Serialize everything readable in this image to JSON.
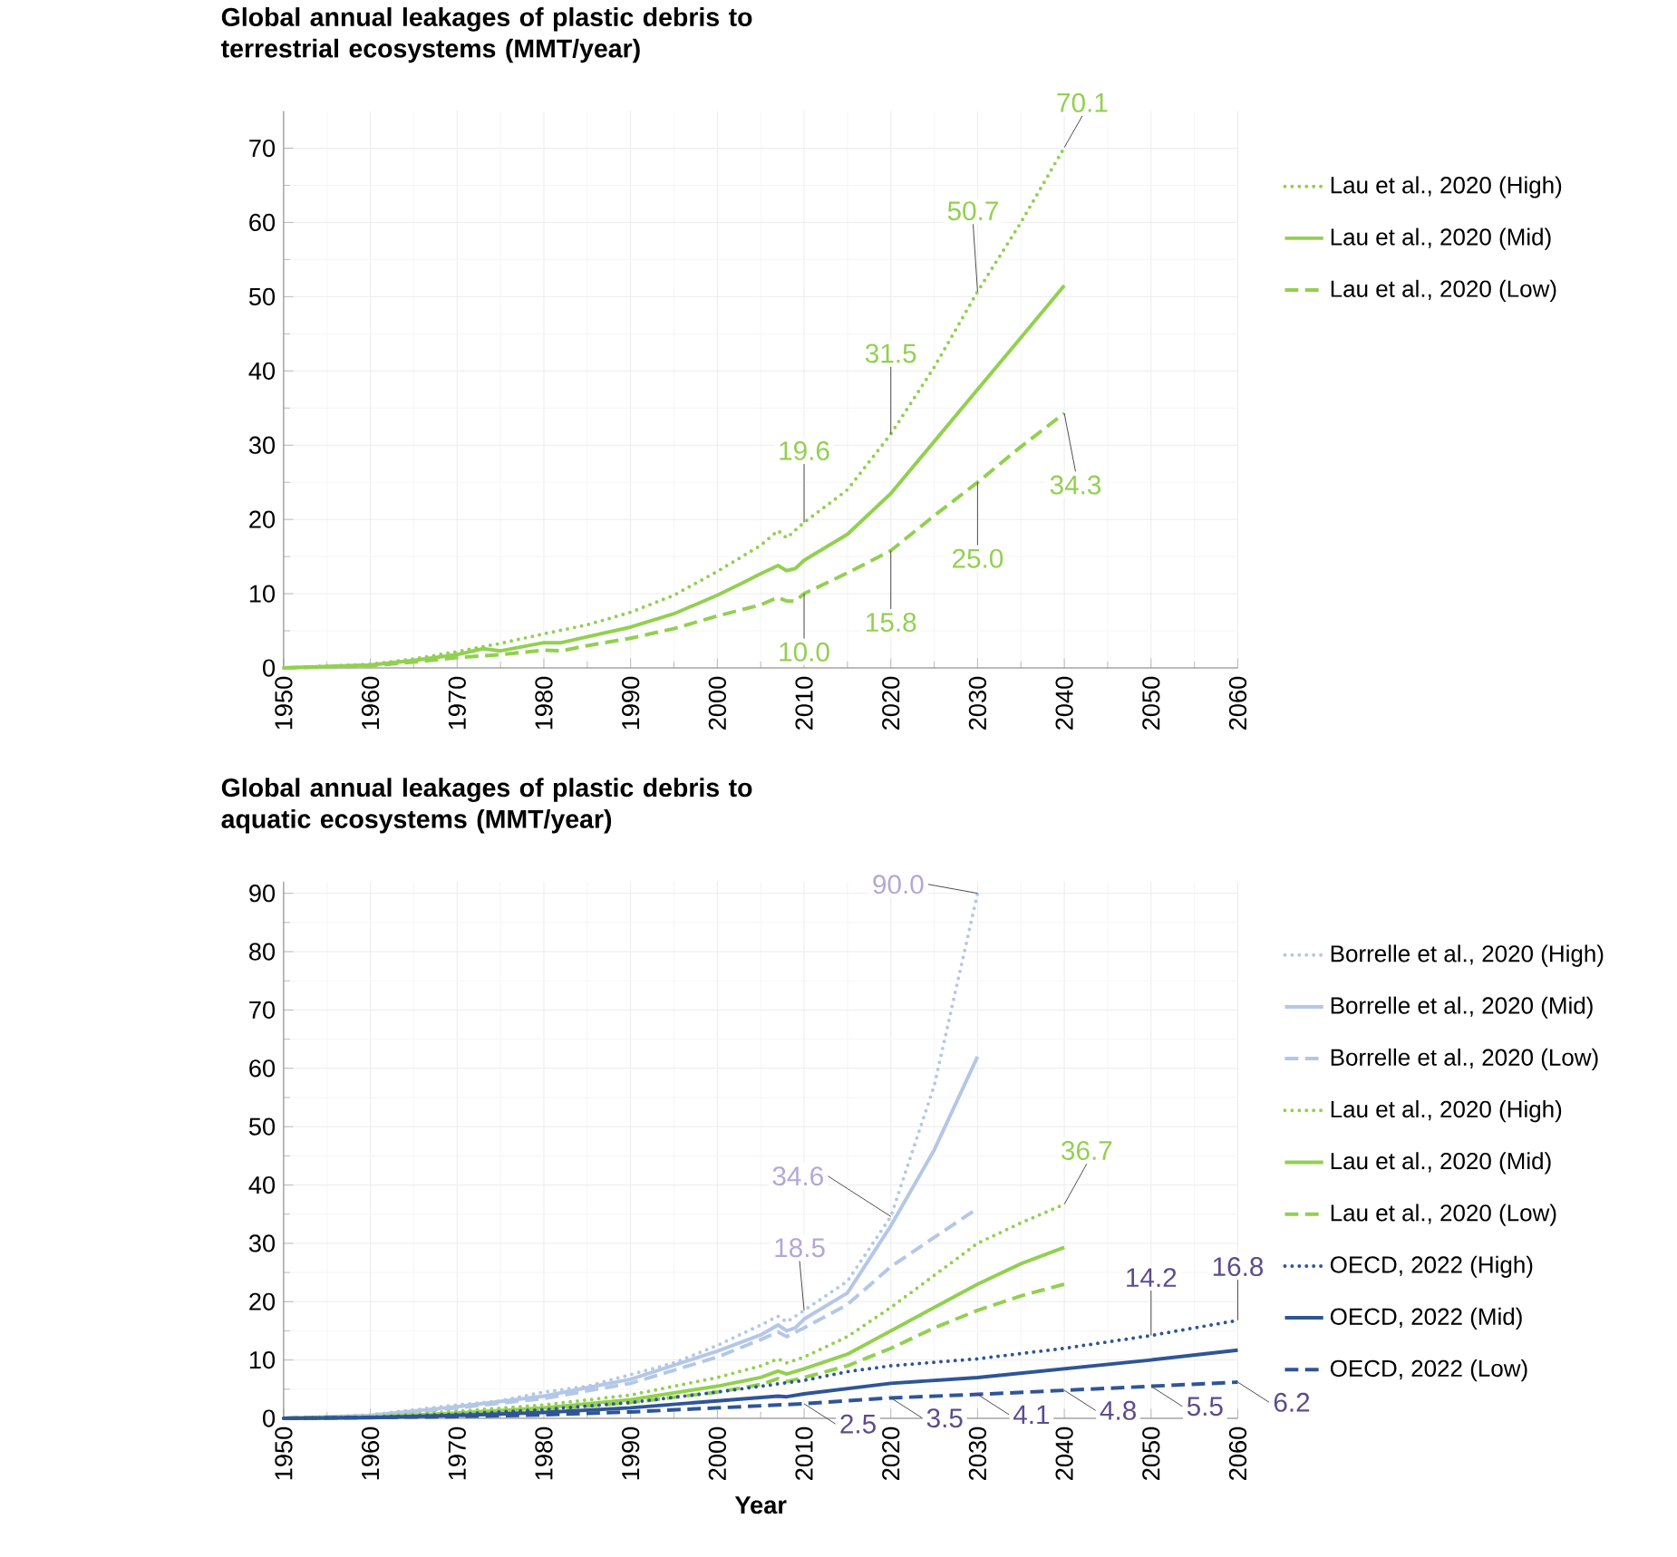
{
  "chart_data": [
    {
      "type": "line",
      "title": "Global annual leakages of plastic debris to terrestrial ecosystems (MMT/year)",
      "xlim": [
        1950,
        2060
      ],
      "xticks": [
        1950,
        1960,
        1970,
        1980,
        1990,
        2000,
        2010,
        2020,
        2030,
        2040,
        2050,
        2060
      ],
      "ylim": [
        0,
        75
      ],
      "yticks": [
        0,
        10,
        20,
        30,
        40,
        50,
        60,
        70
      ],
      "grid": true,
      "legend": "right",
      "series": [
        {
          "name": "Lau et al., 2020 (High)",
          "color": "#92d050",
          "line_style": "dotted",
          "x": [
            1950,
            1960,
            1965,
            1970,
            1975,
            1980,
            1985,
            1990,
            1995,
            2000,
            2005,
            2007,
            2008,
            2010,
            2015,
            2020,
            2025,
            2030,
            2035,
            2040
          ],
          "values": [
            0,
            0.5,
            1.2,
            2.2,
            3.3,
            4.6,
            5.8,
            7.5,
            9.8,
            13,
            16.5,
            18.5,
            17.5,
            19.6,
            24,
            31.5,
            40.5,
            50.7,
            60,
            70.1
          ]
        },
        {
          "name": "Lau et al., 2020 (Mid)",
          "color": "#92d050",
          "line_style": "solid",
          "x": [
            1950,
            1960,
            1965,
            1970,
            1973,
            1975,
            1980,
            1982,
            1985,
            1990,
            1995,
            2000,
            2003,
            2005,
            2007,
            2008,
            2009,
            2010,
            2015,
            2020,
            2025,
            2030,
            2035,
            2040
          ],
          "values": [
            0,
            0.4,
            1,
            1.8,
            2.6,
            2.3,
            3.4,
            3.4,
            4.2,
            5.5,
            7.3,
            9.8,
            11.5,
            12.7,
            13.8,
            13.1,
            13.4,
            14.5,
            18,
            23.5,
            30.5,
            37.5,
            44.5,
            51.5
          ]
        },
        {
          "name": "Lau et al., 2020 (Low)",
          "color": "#92d050",
          "line_style": "dashed",
          "x": [
            1950,
            1960,
            1965,
            1970,
            1975,
            1980,
            1982,
            1985,
            1990,
            1995,
            2000,
            2005,
            2007,
            2008,
            2009,
            2010,
            2015,
            2020,
            2025,
            2030,
            2035,
            2040
          ],
          "values": [
            0,
            0.3,
            0.8,
            1.4,
            1.8,
            2.4,
            2.3,
            3,
            4,
            5.3,
            7,
            8.5,
            9.5,
            9,
            9,
            10.0,
            12.8,
            15.8,
            20.5,
            25.0,
            29.8,
            34.3
          ]
        }
      ],
      "annotations": [
        {
          "text": "19.6",
          "x": 2010,
          "y": 19.6
        },
        {
          "text": "31.5",
          "x": 2020,
          "y": 31.5
        },
        {
          "text": "50.7",
          "x": 2030,
          "y": 50.7
        },
        {
          "text": "70.1",
          "x": 2040,
          "y": 70.1
        },
        {
          "text": "10.0",
          "x": 2010,
          "y": 10.0
        },
        {
          "text": "15.8",
          "x": 2020,
          "y": 15.8
        },
        {
          "text": "25.0",
          "x": 2030,
          "y": 25.0
        },
        {
          "text": "34.3",
          "x": 2040,
          "y": 34.3
        }
      ]
    },
    {
      "type": "line",
      "title": "Global annual leakages of plastic debris to aquatic ecosystems (MMT/year)",
      "xlabel": "Year",
      "xlim": [
        1950,
        2060
      ],
      "xticks": [
        1950,
        1960,
        1970,
        1980,
        1990,
        2000,
        2010,
        2020,
        2030,
        2040,
        2050,
        2060
      ],
      "ylim": [
        0,
        92
      ],
      "yticks": [
        0,
        10,
        20,
        30,
        40,
        50,
        60,
        70,
        80,
        90
      ],
      "grid": true,
      "legend": "right",
      "series": [
        {
          "name": "Borrelle et al., 2020 (High)",
          "color": "#b4c7e7",
          "line_style": "dotted",
          "x": [
            1950,
            1960,
            1970,
            1975,
            1980,
            1985,
            1990,
            1995,
            2000,
            2005,
            2007,
            2008,
            2010,
            2015,
            2020,
            2025,
            2030
          ],
          "values": [
            0,
            0.6,
            2.3,
            3,
            4.5,
            5.5,
            7.5,
            9.5,
            12.5,
            16,
            17.5,
            16.5,
            18.5,
            23.5,
            34.6,
            57,
            90.0
          ]
        },
        {
          "name": "Borrelle et al., 2020 (Mid)",
          "color": "#b4c7e7",
          "line_style": "solid",
          "x": [
            1950,
            1960,
            1970,
            1980,
            1990,
            2000,
            2005,
            2007,
            2008,
            2009,
            2010,
            2015,
            2020,
            2025,
            2030
          ],
          "values": [
            0,
            0.5,
            2,
            3.8,
            6.7,
            11.5,
            14.3,
            16,
            15,
            15.5,
            17,
            21.5,
            33,
            46,
            62
          ]
        },
        {
          "name": "Borrelle et al., 2020 (Low)",
          "color": "#b4c7e7",
          "line_style": "dashed",
          "x": [
            1950,
            1960,
            1970,
            1980,
            1990,
            2000,
            2005,
            2007,
            2008,
            2010,
            2015,
            2020,
            2025,
            2030
          ],
          "values": [
            0,
            0.4,
            1.8,
            3.4,
            6,
            10.5,
            13.5,
            14.8,
            14,
            15.5,
            19.5,
            26,
            31,
            36
          ]
        },
        {
          "name": "Lau et al., 2020 (High)",
          "color": "#92d050",
          "line_style": "dotted",
          "x": [
            1950,
            1960,
            1970,
            1980,
            1990,
            2000,
            2005,
            2007,
            2008,
            2010,
            2015,
            2020,
            2025,
            2030,
            2035,
            2040
          ],
          "values": [
            0,
            0.3,
            1.2,
            2.3,
            4,
            7,
            9,
            10.2,
            9.5,
            10.5,
            14,
            19,
            24.5,
            30,
            33.5,
            36.7
          ]
        },
        {
          "name": "Lau et al., 2020 (Mid)",
          "color": "#92d050",
          "line_style": "solid",
          "x": [
            1950,
            1960,
            1970,
            1980,
            1990,
            2000,
            2005,
            2007,
            2008,
            2010,
            2015,
            2020,
            2025,
            2030,
            2035,
            2040
          ],
          "values": [
            0,
            0.2,
            0.9,
            1.8,
            3.2,
            5.5,
            7,
            8.1,
            7.6,
            8.5,
            11,
            15,
            19,
            23,
            26.5,
            29.3
          ]
        },
        {
          "name": "Lau et al., 2020 (Low)",
          "color": "#92d050",
          "line_style": "dashed",
          "x": [
            1950,
            1960,
            1970,
            1980,
            1990,
            2000,
            2005,
            2007,
            2008,
            2010,
            2015,
            2020,
            2025,
            2030,
            2035,
            2040
          ],
          "values": [
            0,
            0.2,
            0.7,
            1.5,
            2.7,
            4.5,
            5.8,
            6.8,
            6.3,
            7,
            9,
            12,
            15.5,
            18.5,
            21,
            23
          ]
        },
        {
          "name": "OECD, 2022 (High)",
          "color": "#2f5597",
          "line_style": "dotted",
          "x": [
            1950,
            1960,
            1970,
            1980,
            1990,
            2000,
            2010,
            2015,
            2020,
            2030,
            2040,
            2050,
            2060
          ],
          "values": [
            0,
            0.2,
            0.7,
            1.5,
            2.7,
            4.5,
            6.5,
            8,
            9,
            10.2,
            12,
            14.2,
            16.8
          ]
        },
        {
          "name": "OECD, 2022 (Mid)",
          "color": "#2f5597",
          "line_style": "solid",
          "x": [
            1950,
            1960,
            1970,
            1980,
            1990,
            2000,
            2007,
            2008,
            2010,
            2020,
            2030,
            2040,
            2050,
            2060
          ],
          "values": [
            0,
            0.1,
            0.5,
            1,
            1.8,
            3,
            3.8,
            3.7,
            4.2,
            6,
            7,
            8.5,
            10,
            11.7
          ]
        },
        {
          "name": "OECD, 2022 (Low)",
          "color": "#2f5597",
          "line_style": "dashed",
          "x": [
            1950,
            1970,
            1980,
            1990,
            2000,
            2010,
            2020,
            2030,
            2040,
            2050,
            2060
          ],
          "values": [
            0,
            0.3,
            0.6,
            1.1,
            1.8,
            2.5,
            3.5,
            4.1,
            4.8,
            5.5,
            6.2
          ]
        }
      ],
      "annotations": [
        {
          "text": "90.0",
          "x": 2030,
          "y": 90.0
        },
        {
          "text": "34.6",
          "x": 2020,
          "y": 34.6
        },
        {
          "text": "18.5",
          "x": 2010,
          "y": 18.5
        },
        {
          "text": "36.7",
          "x": 2040,
          "y": 36.7
        },
        {
          "text": "16.8",
          "x": 2060,
          "y": 16.8
        },
        {
          "text": "14.2",
          "x": 2050,
          "y": 14.2
        },
        {
          "text": "2.5",
          "x": 2010,
          "y": 2.5
        },
        {
          "text": "3.5",
          "x": 2020,
          "y": 3.5
        },
        {
          "text": "4.1",
          "x": 2030,
          "y": 4.1
        },
        {
          "text": "4.8",
          "x": 2040,
          "y": 4.8
        },
        {
          "text": "5.5",
          "x": 2050,
          "y": 5.5
        },
        {
          "text": "6.2",
          "x": 2060,
          "y": 6.2
        }
      ]
    }
  ]
}
